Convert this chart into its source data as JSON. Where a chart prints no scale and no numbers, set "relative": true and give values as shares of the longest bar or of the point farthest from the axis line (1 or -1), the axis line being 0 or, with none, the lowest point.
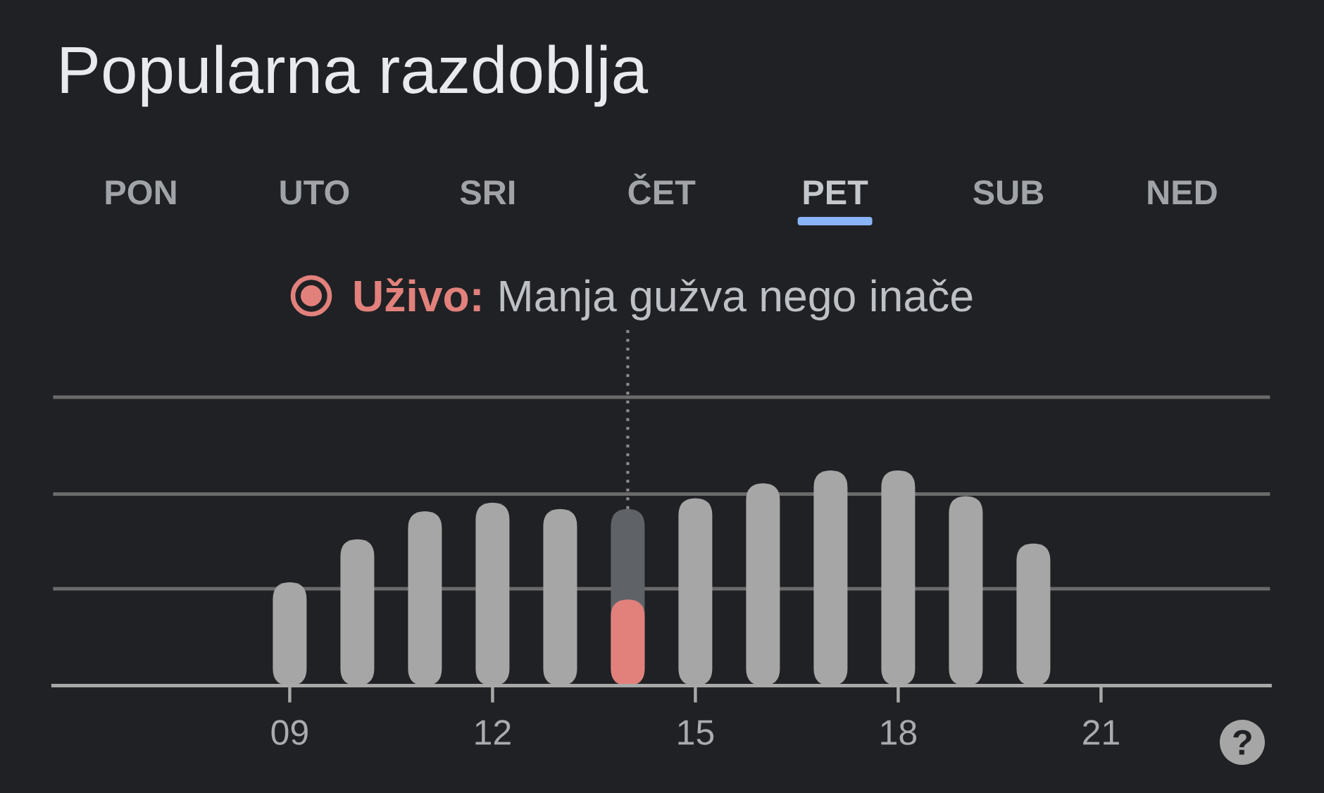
{
  "chart_data": {
    "type": "bar",
    "title": "Popularna razdoblja",
    "annotations": [
      "PON",
      "UTO",
      "SRI",
      "ČET",
      "PET",
      "SUB",
      "NED",
      "Uživo:",
      "Manja gužva nego inače"
    ],
    "x": [
      9,
      10,
      11,
      12,
      13,
      14,
      15,
      16,
      17,
      18,
      19,
      20
    ],
    "xlim": [
      5.5,
      23.5
    ],
    "xticks": [
      {
        "value": 9,
        "label": "09"
      },
      12,
      15,
      18,
      21
    ],
    "relative": true,
    "series": [
      {
        "colors": [
          "#a6a6a6",
          "#a6a6a6",
          "#a6a6a6",
          "#a6a6a6",
          "#a6a6a6",
          "#5f6368",
          "#a6a6a6",
          "#a6a6a6",
          "#a6a6a6",
          "#a6a6a6",
          "#a6a6a6",
          "#a6a6a6"
        ],
        "values": [
          0.48,
          0.68,
          0.81,
          0.85,
          0.82,
          0.82,
          0.87,
          0.94,
          1,
          1,
          0.88,
          0.66
        ]
      },
      {
        "color": "#e2817c",
        "values": [
          null,
          null,
          null,
          null,
          null,
          0.4,
          null,
          null,
          null,
          null,
          null,
          null
        ]
      }
    ],
    "ref_lines": [
      {
        "axis": "x",
        "value": 14,
        "color": "#8e8e8e",
        "line_style": "dotted"
      },
      {
        "axis": "y",
        "value": 0.45,
        "color": "#6a6a6a",
        "line_style": "solid"
      },
      {
        "axis": "y",
        "value": 0.89,
        "color": "#6a6a6a",
        "line_style": "solid"
      },
      {
        "axis": "y",
        "value": 1.34,
        "color": "#6a6a6a",
        "line_style": "solid"
      }
    ]
  }
}
